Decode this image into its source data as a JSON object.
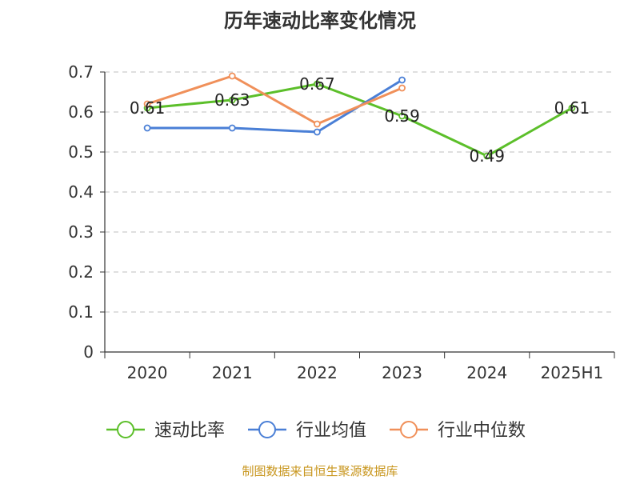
{
  "chart_data": {
    "type": "line",
    "title": "历年速动比率变化情况",
    "categories": [
      "2020",
      "2021",
      "2022",
      "2023",
      "2024",
      "2025H1"
    ],
    "ylim": [
      0,
      0.7
    ],
    "yticks": [
      "0",
      "0.1",
      "0.2",
      "0.3",
      "0.4",
      "0.5",
      "0.6",
      "0.7"
    ],
    "grid": true,
    "legend_position": "bottom",
    "series": [
      {
        "name": "速动比率",
        "color": "#5cbf2a",
        "values": [
          0.61,
          0.63,
          0.67,
          0.59,
          0.49,
          0.61
        ],
        "labels": [
          "0.61",
          "0.63",
          "0.67",
          "0.59",
          "0.49",
          "0.61"
        ]
      },
      {
        "name": "行业均值",
        "color": "#4a7fd6",
        "values": [
          0.56,
          0.56,
          0.55,
          0.68,
          null,
          null
        ]
      },
      {
        "name": "行业中位数",
        "color": "#f0905a",
        "values": [
          0.62,
          0.69,
          0.57,
          0.66,
          null,
          null
        ]
      }
    ]
  },
  "source": "制图数据来自恒生聚源数据库"
}
